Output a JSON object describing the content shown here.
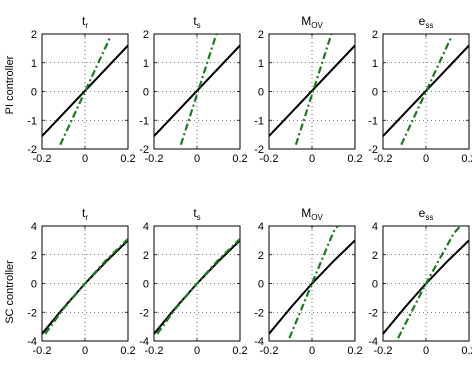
{
  "colors": {
    "black_line": "#000000",
    "green_line": "#1b7a1b"
  },
  "rows": [
    {
      "ylabel": "PI controller"
    },
    {
      "ylabel": "SC controller"
    }
  ],
  "chart_data": [
    {
      "type": "line",
      "row": 0,
      "col": 0,
      "title_main": "t",
      "title_sub": "r",
      "title": "t_r",
      "xlim": [
        -0.2,
        0.2
      ],
      "ylim": [
        -2,
        2
      ],
      "xticks": [
        "-0.2",
        "0",
        "0.2"
      ],
      "yticks": [
        "-2",
        "-1",
        "0",
        "1",
        "2"
      ],
      "grid": "dotted",
      "series": [
        {
          "style": "solid",
          "color": "#000000",
          "points": [
            [
              -0.2,
              -1.55
            ],
            [
              0.2,
              1.6
            ]
          ]
        },
        {
          "style": "dashdot",
          "color": "#1b7a1b",
          "points": [
            [
              -0.115,
              -1.85
            ],
            [
              0.115,
              1.85
            ]
          ]
        }
      ]
    },
    {
      "type": "line",
      "row": 0,
      "col": 1,
      "title_main": "t",
      "title_sub": "s",
      "title": "t_s",
      "xlim": [
        -0.2,
        0.2
      ],
      "ylim": [
        -2,
        2
      ],
      "xticks": [
        "-0.2",
        "0",
        "0.2"
      ],
      "yticks": [
        "-2",
        "-1",
        "0",
        "1",
        "2"
      ],
      "grid": "dotted",
      "series": [
        {
          "style": "solid",
          "color": "#000000",
          "points": [
            [
              -0.2,
              -1.55
            ],
            [
              0.2,
              1.6
            ]
          ]
        },
        {
          "style": "dashdot",
          "color": "#1b7a1b",
          "points": [
            [
              -0.075,
              -1.85
            ],
            [
              0.09,
              2.0
            ]
          ]
        }
      ]
    },
    {
      "type": "line",
      "row": 0,
      "col": 2,
      "title_main": "M",
      "title_sub": "OV",
      "title": "M_OV",
      "xlim": [
        -0.2,
        0.2
      ],
      "ylim": [
        -2,
        2
      ],
      "xticks": [
        "-0.2",
        "0",
        "0.2"
      ],
      "yticks": [
        "-2",
        "-1",
        "0",
        "1",
        "2"
      ],
      "grid": "dotted",
      "series": [
        {
          "style": "solid",
          "color": "#000000",
          "points": [
            [
              -0.2,
              -1.55
            ],
            [
              0.2,
              1.6
            ]
          ]
        },
        {
          "style": "dashdot",
          "color": "#1b7a1b",
          "points": [
            [
              -0.075,
              -1.85
            ],
            [
              0.09,
              2.0
            ]
          ]
        }
      ]
    },
    {
      "type": "line",
      "row": 0,
      "col": 3,
      "title_main": "e",
      "title_sub": "ss",
      "title": "e_ss",
      "xlim": [
        -0.2,
        0.2
      ],
      "ylim": [
        -2,
        2
      ],
      "xticks": [
        "-0.2",
        "0",
        "0.2"
      ],
      "yticks": [
        "-2",
        "-1",
        "0",
        "1",
        "2"
      ],
      "grid": "dotted",
      "series": [
        {
          "style": "solid",
          "color": "#000000",
          "points": [
            [
              -0.2,
              -1.55
            ],
            [
              0.2,
              1.6
            ]
          ]
        },
        {
          "style": "dashdot",
          "color": "#1b7a1b",
          "points": [
            [
              -0.115,
              -1.85
            ],
            [
              0.115,
              1.85
            ]
          ]
        }
      ]
    },
    {
      "type": "line",
      "row": 1,
      "col": 0,
      "title_main": "t",
      "title_sub": "r",
      "title": "t_r",
      "xlim": [
        -0.2,
        0.2
      ],
      "ylim": [
        -4,
        4
      ],
      "xticks": [
        "-0.2",
        "0",
        "0.2"
      ],
      "yticks": [
        "-4",
        "-2",
        "0",
        "2",
        "4"
      ],
      "grid": "dotted",
      "series": [
        {
          "style": "solid",
          "color": "#000000",
          "points": [
            [
              -0.2,
              -3.5
            ],
            [
              -0.1,
              -1.7
            ],
            [
              0,
              0
            ],
            [
              0.1,
              1.55
            ],
            [
              0.2,
              3.0
            ]
          ]
        },
        {
          "style": "dashdot",
          "color": "#1b7a1b",
          "points": [
            [
              -0.185,
              -3.5
            ],
            [
              -0.1,
              -1.75
            ],
            [
              0,
              0
            ],
            [
              0.1,
              1.65
            ],
            [
              0.2,
              3.1
            ]
          ]
        }
      ]
    },
    {
      "type": "line",
      "row": 1,
      "col": 1,
      "title_main": "t",
      "title_sub": "s",
      "title": "t_s",
      "xlim": [
        -0.2,
        0.2
      ],
      "ylim": [
        -4,
        4
      ],
      "xticks": [
        "-0.2",
        "0",
        "0.2"
      ],
      "yticks": [
        "-4",
        "-2",
        "0",
        "2",
        "4"
      ],
      "grid": "dotted",
      "series": [
        {
          "style": "solid",
          "color": "#000000",
          "points": [
            [
              -0.2,
              -3.5
            ],
            [
              -0.1,
              -1.7
            ],
            [
              0,
              0
            ],
            [
              0.1,
              1.55
            ],
            [
              0.2,
              3.0
            ]
          ]
        },
        {
          "style": "dashdot",
          "color": "#1b7a1b",
          "points": [
            [
              -0.185,
              -3.5
            ],
            [
              -0.1,
              -1.75
            ],
            [
              0,
              0
            ],
            [
              0.1,
              1.65
            ],
            [
              0.2,
              3.1
            ]
          ]
        }
      ]
    },
    {
      "type": "line",
      "row": 1,
      "col": 2,
      "title_main": "M",
      "title_sub": "OV",
      "title": "M_OV",
      "xlim": [
        -0.2,
        0.2
      ],
      "ylim": [
        -4,
        4
      ],
      "xticks": [
        "-0.2",
        "0",
        "0.2"
      ],
      "yticks": [
        "-4",
        "-2",
        "0",
        "2",
        "4"
      ],
      "grid": "dotted",
      "series": [
        {
          "style": "solid",
          "color": "#000000",
          "points": [
            [
              -0.2,
              -3.5
            ],
            [
              -0.1,
              -1.7
            ],
            [
              0,
              0
            ],
            [
              0.1,
              1.55
            ],
            [
              0.2,
              3.0
            ]
          ]
        },
        {
          "style": "dashdot",
          "color": "#1b7a1b",
          "points": [
            [
              -0.105,
              -3.8
            ],
            [
              0,
              0
            ],
            [
              0.1,
              3.6
            ],
            [
              0.12,
              4.0
            ]
          ]
        }
      ]
    },
    {
      "type": "line",
      "row": 1,
      "col": 3,
      "title_main": "e",
      "title_sub": "ss",
      "title": "e_ss",
      "xlim": [
        -0.2,
        0.2
      ],
      "ylim": [
        -4,
        4
      ],
      "xticks": [
        "-0.2",
        "0",
        "0.2"
      ],
      "yticks": [
        "-4",
        "-2",
        "0",
        "2",
        "4"
      ],
      "grid": "dotted",
      "series": [
        {
          "style": "solid",
          "color": "#000000",
          "points": [
            [
              -0.2,
              -3.5
            ],
            [
              -0.1,
              -1.7
            ],
            [
              0,
              0
            ],
            [
              0.1,
              1.55
            ],
            [
              0.2,
              3.0
            ]
          ]
        },
        {
          "style": "dashdot",
          "color": "#1b7a1b",
          "points": [
            [
              -0.13,
              -3.8
            ],
            [
              0,
              0
            ],
            [
              0.13,
              3.5
            ],
            [
              0.16,
              4.0
            ]
          ]
        }
      ]
    }
  ]
}
